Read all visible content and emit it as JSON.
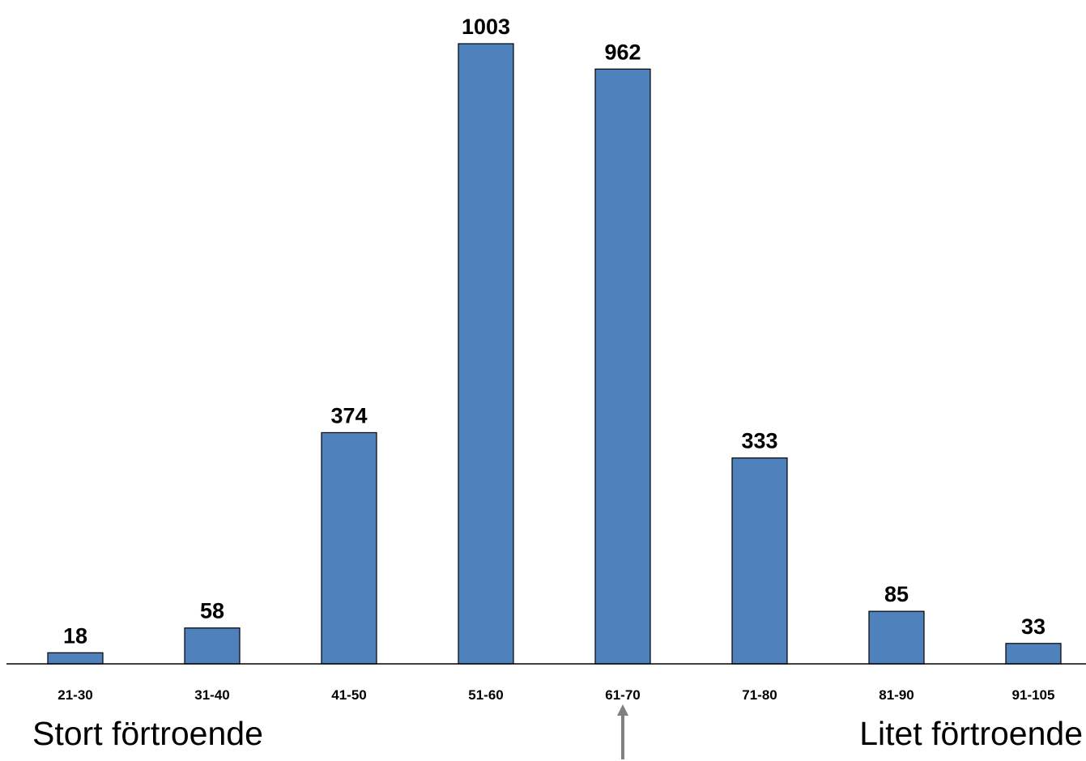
{
  "colors": {
    "bar_fill": "#4F81BD",
    "bar_stroke": "#000000",
    "axis": "#000000",
    "arrow": "#808080",
    "background": "#FFFFFF"
  },
  "chart_data": {
    "type": "bar",
    "categories": [
      "21-30",
      "31-40",
      "41-50",
      "51-60",
      "61-70",
      "71-80",
      "81-90",
      "91-105"
    ],
    "values": [
      18,
      58,
      374,
      1003,
      962,
      333,
      85,
      33
    ],
    "data_labels": [
      "18",
      "58",
      "374",
      "1003",
      "962",
      "333",
      "85",
      "33"
    ],
    "ylim": [
      0,
      1003
    ],
    "grid": false,
    "legend": "none",
    "annotations": {
      "left_label": "Stort förtroende",
      "right_label": "Litet förtroende",
      "arrow_category": "61-70",
      "arrow_direction": "up"
    }
  }
}
